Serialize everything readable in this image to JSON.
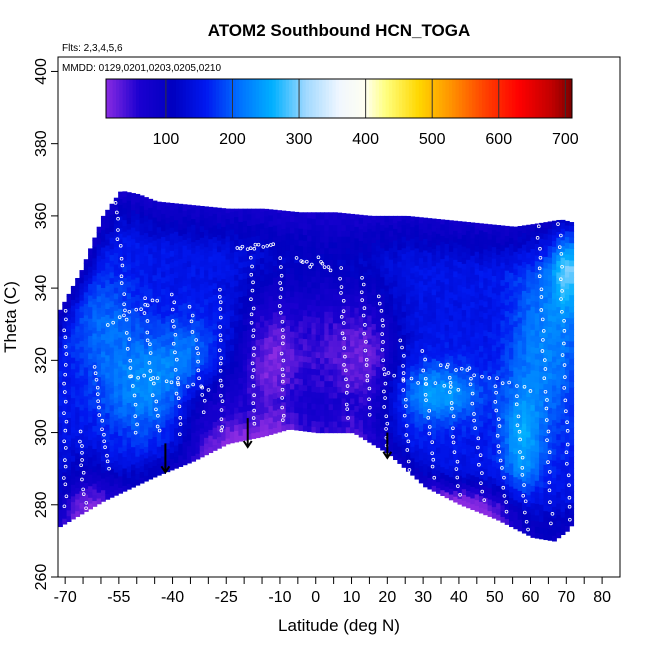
{
  "chart_data": {
    "type": "heatmap",
    "title": "ATOM2 Southbound HCN_TOGA",
    "annotations": {
      "flights": "Flts: 2,3,4,5,6",
      "dates": "MMDD: 0129,0201,0203,0205,0210"
    },
    "xlabel": "Latitude (deg N)",
    "ylabel": "Theta (C)",
    "xlim": [
      -72,
      85
    ],
    "ylim": [
      260,
      404
    ],
    "x_ticks": [
      -70,
      -55,
      -40,
      -25,
      -10,
      0,
      10,
      20,
      30,
      40,
      50,
      60,
      70,
      80
    ],
    "x_minor_ticks": [
      -65,
      -60,
      -50,
      -45,
      -35,
      -30,
      -20,
      -15,
      -5,
      5,
      15,
      25,
      35,
      45,
      55,
      65,
      75
    ],
    "y_ticks": [
      260,
      280,
      300,
      320,
      340,
      360,
      380,
      400
    ],
    "colorbar": {
      "min": 10,
      "max": 710,
      "ticks": [
        100,
        200,
        300,
        400,
        500,
        600,
        700
      ],
      "separators": [
        100,
        200,
        300,
        400,
        500,
        600,
        700
      ],
      "stops": [
        {
          "v": 10,
          "c": "#8a2be2"
        },
        {
          "v": 60,
          "c": "#1a00d0"
        },
        {
          "v": 110,
          "c": "#0000c0"
        },
        {
          "v": 160,
          "c": "#0018f0"
        },
        {
          "v": 210,
          "c": "#0070ff"
        },
        {
          "v": 260,
          "c": "#00b0ff"
        },
        {
          "v": 310,
          "c": "#a0d8ff"
        },
        {
          "v": 360,
          "c": "#f0f6ff"
        },
        {
          "v": 400,
          "c": "#fffff0"
        },
        {
          "v": 430,
          "c": "#ffff80"
        },
        {
          "v": 480,
          "c": "#ffd700"
        },
        {
          "v": 530,
          "c": "#ff9000"
        },
        {
          "v": 580,
          "c": "#ff4000"
        },
        {
          "v": 630,
          "c": "#ff0000"
        },
        {
          "v": 680,
          "c": "#c00000"
        },
        {
          "v": 710,
          "c": "#7a0000"
        }
      ]
    },
    "curtain": {
      "top_boundary": [
        [
          -72,
          334
        ],
        [
          -66,
          345
        ],
        [
          -60,
          360
        ],
        [
          -55,
          367
        ],
        [
          -50,
          366
        ],
        [
          -45,
          364
        ],
        [
          -35,
          363
        ],
        [
          -25,
          362
        ],
        [
          -15,
          362
        ],
        [
          -5,
          361
        ],
        [
          5,
          361
        ],
        [
          15,
          360
        ],
        [
          25,
          360
        ],
        [
          35,
          359
        ],
        [
          45,
          358
        ],
        [
          55,
          357
        ],
        [
          62,
          358
        ],
        [
          68,
          359
        ],
        [
          72,
          358
        ]
      ],
      "bottom_boundary": [
        [
          -72,
          274
        ],
        [
          -60,
          281
        ],
        [
          -45,
          288
        ],
        [
          -35,
          292
        ],
        [
          -25,
          297
        ],
        [
          -15,
          299
        ],
        [
          -8,
          301
        ],
        [
          0,
          300
        ],
        [
          10,
          300
        ],
        [
          20,
          294
        ],
        [
          30,
          285
        ],
        [
          40,
          280
        ],
        [
          50,
          276
        ],
        [
          60,
          271
        ],
        [
          66,
          270
        ],
        [
          70,
          273
        ],
        [
          72,
          276
        ]
      ],
      "background_value": 150,
      "features": [
        {
          "x": -14,
          "y": 318,
          "sx": 6,
          "sy": 16,
          "v": 40
        },
        {
          "x": 2,
          "y": 322,
          "sx": 9,
          "sy": 18,
          "v": 55
        },
        {
          "x": 15,
          "y": 318,
          "sx": 6,
          "sy": 14,
          "v": 60
        },
        {
          "x": -30,
          "y": 305,
          "sx": 7,
          "sy": 10,
          "v": 60
        },
        {
          "x": 40,
          "y": 278,
          "sx": 14,
          "sy": 5,
          "v": 40
        },
        {
          "x": -65,
          "y": 280,
          "sx": 6,
          "sy": 8,
          "v": 60
        },
        {
          "x": -48,
          "y": 312,
          "sx": 9,
          "sy": 10,
          "v": 230
        },
        {
          "x": -60,
          "y": 330,
          "sx": 7,
          "sy": 10,
          "v": 200
        },
        {
          "x": 33,
          "y": 310,
          "sx": 9,
          "sy": 6,
          "v": 245
        },
        {
          "x": 57,
          "y": 296,
          "sx": 4,
          "sy": 12,
          "v": 240
        },
        {
          "x": 64,
          "y": 325,
          "sx": 7,
          "sy": 18,
          "v": 225
        },
        {
          "x": 70,
          "y": 345,
          "sx": 3,
          "sy": 8,
          "v": 270
        },
        {
          "x": -35,
          "y": 320,
          "sx": 6,
          "sy": 8,
          "v": 210
        },
        {
          "x": -20,
          "y": 292,
          "sx": 8,
          "sy": 6,
          "v": 90
        }
      ]
    },
    "sample_tracks": [
      {
        "x0": -66,
        "y0": 300,
        "x1": -64,
        "y1": 275,
        "n": 14
      },
      {
        "x0": -62,
        "y0": 318,
        "x1": -58,
        "y1": 290,
        "n": 16
      },
      {
        "x0": -56,
        "y0": 364,
        "x1": -50,
        "y1": 300,
        "n": 26
      },
      {
        "x0": -48,
        "y0": 337,
        "x1": -44,
        "y1": 300,
        "n": 18
      },
      {
        "x0": -40,
        "y0": 338,
        "x1": -38,
        "y1": 300,
        "n": 18
      },
      {
        "x0": -35,
        "y0": 335,
        "x1": -31,
        "y1": 306,
        "n": 14
      },
      {
        "x0": -27,
        "y0": 340,
        "x1": -26,
        "y1": 300,
        "n": 20
      },
      {
        "x0": -22,
        "y0": 351,
        "x1": -12,
        "y1": 352,
        "n": 12
      },
      {
        "x0": -18,
        "y0": 348,
        "x1": -17,
        "y1": 302,
        "n": 22
      },
      {
        "x0": -10,
        "y0": 348,
        "x1": -9,
        "y1": 303,
        "n": 22
      },
      {
        "x0": -5,
        "y0": 348,
        "x1": -1,
        "y1": 346,
        "n": 6
      },
      {
        "x0": 1,
        "y0": 348,
        "x1": 4,
        "y1": 345,
        "n": 6
      },
      {
        "x0": 7,
        "y0": 345,
        "x1": 9,
        "y1": 304,
        "n": 20
      },
      {
        "x0": 13,
        "y0": 343,
        "x1": 15,
        "y1": 305,
        "n": 18
      },
      {
        "x0": 18,
        "y0": 338,
        "x1": 20,
        "y1": 296,
        "n": 20
      },
      {
        "x0": 24,
        "y0": 326,
        "x1": 26,
        "y1": 290,
        "n": 16
      },
      {
        "x0": 30,
        "y0": 322,
        "x1": 33,
        "y1": 288,
        "n": 16
      },
      {
        "x0": 37,
        "y0": 318,
        "x1": 40,
        "y1": 283,
        "n": 16
      },
      {
        "x0": 43,
        "y0": 318,
        "x1": 47,
        "y1": 281,
        "n": 16
      },
      {
        "x0": 50,
        "y0": 313,
        "x1": 53,
        "y1": 278,
        "n": 16
      },
      {
        "x0": 56,
        "y0": 310,
        "x1": 59,
        "y1": 273,
        "n": 16
      },
      {
        "x0": 62,
        "y0": 357,
        "x1": 66,
        "y1": 275,
        "n": 30
      },
      {
        "x0": 68,
        "y0": 358,
        "x1": 71,
        "y1": 276,
        "n": 28
      },
      {
        "x0": -70,
        "y0": 334,
        "x1": -70,
        "y1": 280,
        "n": 22
      },
      {
        "x0": -58,
        "y0": 330,
        "x1": -44,
        "y1": 337,
        "n": 10
      },
      {
        "x0": 35,
        "y0": 319,
        "x1": 60,
        "y1": 312,
        "n": 14
      },
      {
        "x0": -52,
        "y0": 316,
        "x1": -30,
        "y1": 312,
        "n": 12
      },
      {
        "x0": 20,
        "y0": 316,
        "x1": 40,
        "y1": 312,
        "n": 10
      }
    ],
    "arrows": [
      {
        "x": -42,
        "y_from": 297,
        "y_to": 289
      },
      {
        "x": -19,
        "y_from": 304,
        "y_to": 296
      },
      {
        "x": 20,
        "y_from": 300,
        "y_to": 293
      }
    ]
  }
}
